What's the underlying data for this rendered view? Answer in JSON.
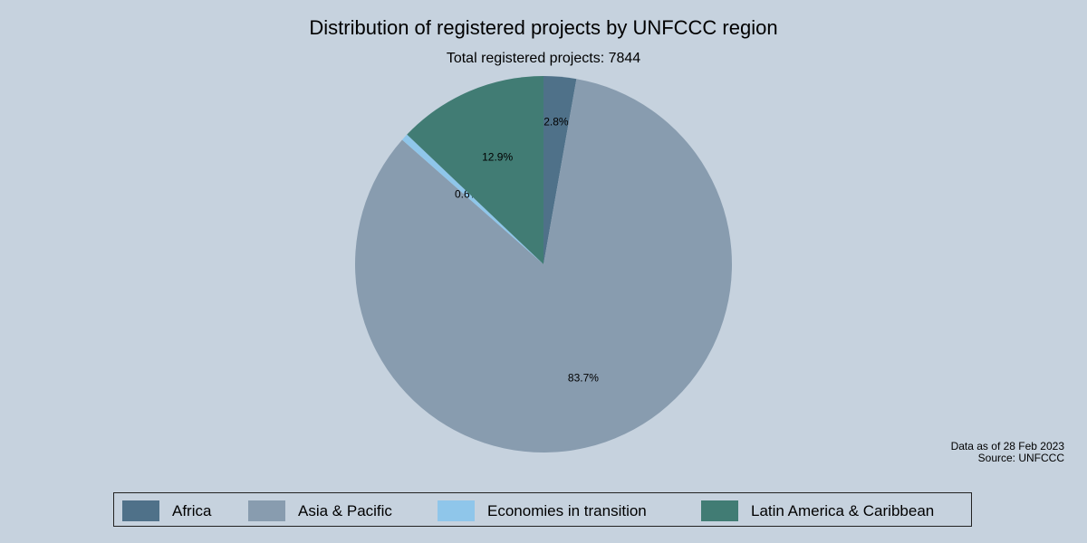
{
  "title": "Distribution of registered projects by UNFCCC region",
  "subtitle": "Total registered projects: 7844",
  "note": {
    "line1": "Data as of 28 Feb 2023",
    "line2": "Source: UNFCCC"
  },
  "legend": [
    {
      "label": "Africa",
      "color": "#4f7189"
    },
    {
      "label": "Asia & Pacific",
      "color": "#889caf"
    },
    {
      "label": "Economies in transition",
      "color": "#8fc6ea"
    },
    {
      "label": "Latin America & Caribbean",
      "color": "#417c74"
    }
  ],
  "chart_data": {
    "type": "pie",
    "title": "Distribution of registered projects by UNFCCC region",
    "subtitle": "Total registered projects: 7844",
    "categories": [
      "Africa",
      "Asia & Pacific",
      "Economies in transition",
      "Latin America & Caribbean"
    ],
    "values": [
      2.8,
      83.7,
      0.6,
      12.9
    ],
    "value_labels": [
      "2.8%",
      "83.7%",
      "0.6%",
      "12.9%"
    ],
    "colors": [
      "#4f7189",
      "#889caf",
      "#8fc6ea",
      "#417c74"
    ],
    "start_angle": "12 o'clock, clockwise",
    "total": 7844,
    "legend_position": "bottom",
    "annotations": [
      "Data as of 28 Feb 2023",
      "Source: UNFCCC"
    ]
  }
}
